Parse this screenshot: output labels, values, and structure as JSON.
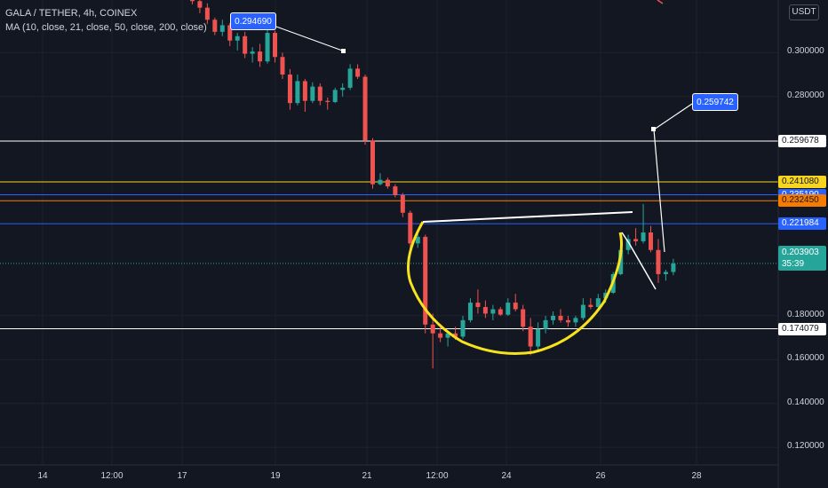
{
  "header": {
    "symbol_line": "GALA / TETHER, 4h, COINEX",
    "ma_line": "MA (10, close, 21, close, 50, close, 200, close)"
  },
  "currency_button": "USDT",
  "colors": {
    "background": "#131722",
    "up": "#26a69a",
    "down": "#ef5350",
    "white_line": "#ffffff",
    "yellow_line": "#f7d51d",
    "blue_line": "#2962ff",
    "orange_line": "#f57c00"
  },
  "chart_data": {
    "type": "candlestick",
    "title": "GALA / TETHER, 4h, COINEX",
    "ylim": [
      0.112,
      0.324
    ],
    "y_ticks": [
      "0.300000",
      "0.280000",
      "0.180000",
      "0.160000",
      "0.140000",
      "0.120000"
    ],
    "y_tick_values": [
      0.3,
      0.28,
      0.18,
      0.16,
      0.14,
      0.12
    ],
    "x_ticks": [
      "14",
      "12:00",
      "17",
      "19",
      "21",
      "12:00",
      "24",
      "26",
      "28"
    ],
    "candles": [
      [
        0.3315,
        0.333,
        0.324,
        0.326
      ],
      [
        0.326,
        0.33,
        0.322,
        0.3235
      ],
      [
        0.3235,
        0.326,
        0.318,
        0.3205
      ],
      [
        0.3205,
        0.3225,
        0.313,
        0.315
      ],
      [
        0.315,
        0.316,
        0.308,
        0.3095
      ],
      [
        0.3095,
        0.315,
        0.3075,
        0.3125
      ],
      [
        0.3125,
        0.3135,
        0.303,
        0.3055
      ],
      [
        0.3055,
        0.309,
        0.301,
        0.3075
      ],
      [
        0.3075,
        0.3095,
        0.2975,
        0.2995
      ],
      [
        0.2995,
        0.3025,
        0.2955,
        0.3005
      ],
      [
        0.3005,
        0.304,
        0.2935,
        0.296
      ],
      [
        0.296,
        0.312,
        0.295,
        0.309
      ],
      [
        0.309,
        0.31,
        0.2955,
        0.298
      ],
      [
        0.298,
        0.3,
        0.288,
        0.29
      ],
      [
        0.29,
        0.2925,
        0.274,
        0.277
      ],
      [
        0.277,
        0.29,
        0.276,
        0.287
      ],
      [
        0.287,
        0.288,
        0.273,
        0.278
      ],
      [
        0.278,
        0.2865,
        0.277,
        0.2845
      ],
      [
        0.2845,
        0.286,
        0.276,
        0.278
      ],
      [
        0.278,
        0.2795,
        0.274,
        0.2775
      ],
      [
        0.2775,
        0.284,
        0.277,
        0.283
      ],
      [
        0.283,
        0.286,
        0.28,
        0.284
      ],
      [
        0.284,
        0.2947,
        0.283,
        0.2927
      ],
      [
        0.2927,
        0.2947,
        0.288,
        0.289
      ],
      [
        0.289,
        0.29,
        0.258,
        0.26
      ],
      [
        0.26,
        0.261,
        0.238,
        0.24
      ],
      [
        0.24,
        0.245,
        0.2395,
        0.242
      ],
      [
        0.242,
        0.243,
        0.238,
        0.239
      ],
      [
        0.239,
        0.24,
        0.234,
        0.235
      ],
      [
        0.235,
        0.236,
        0.225,
        0.227
      ],
      [
        0.227,
        0.228,
        0.21,
        0.213
      ],
      [
        0.213,
        0.218,
        0.211,
        0.216
      ],
      [
        0.216,
        0.217,
        0.172,
        0.176
      ],
      [
        0.176,
        0.181,
        0.156,
        0.172
      ],
      [
        0.172,
        0.176,
        0.168,
        0.17
      ],
      [
        0.17,
        0.173,
        0.166,
        0.172
      ],
      [
        0.172,
        0.175,
        0.169,
        0.1705
      ],
      [
        0.1705,
        0.18,
        0.1695,
        0.178
      ],
      [
        0.178,
        0.188,
        0.177,
        0.186
      ],
      [
        0.186,
        0.192,
        0.181,
        0.184
      ],
      [
        0.184,
        0.187,
        0.179,
        0.181
      ],
      [
        0.181,
        0.185,
        0.178,
        0.183
      ],
      [
        0.183,
        0.184,
        0.18,
        0.1805
      ],
      [
        0.1805,
        0.188,
        0.18,
        0.186
      ],
      [
        0.186,
        0.19,
        0.182,
        0.183
      ],
      [
        0.183,
        0.185,
        0.173,
        0.175
      ],
      [
        0.175,
        0.179,
        0.162,
        0.166
      ],
      [
        0.166,
        0.177,
        0.164,
        0.174
      ],
      [
        0.174,
        0.18,
        0.172,
        0.178
      ],
      [
        0.178,
        0.182,
        0.176,
        0.18
      ],
      [
        0.18,
        0.183,
        0.177,
        0.178
      ],
      [
        0.178,
        0.18,
        0.175,
        0.177
      ],
      [
        0.177,
        0.18,
        0.175,
        0.179
      ],
      [
        0.179,
        0.188,
        0.178,
        0.185
      ],
      [
        0.185,
        0.188,
        0.183,
        0.184
      ],
      [
        0.184,
        0.19,
        0.182,
        0.188
      ],
      [
        0.188,
        0.192,
        0.186,
        0.1905
      ],
      [
        0.1905,
        0.2,
        0.19,
        0.199
      ],
      [
        0.199,
        0.213,
        0.1985,
        0.21
      ],
      [
        0.21,
        0.217,
        0.208,
        0.215
      ],
      [
        0.215,
        0.22,
        0.212,
        0.214
      ],
      [
        0.214,
        0.231,
        0.213,
        0.218
      ],
      [
        0.218,
        0.221,
        0.209,
        0.21
      ],
      [
        0.21,
        0.215,
        0.195,
        0.199
      ],
      [
        0.199,
        0.201,
        0.196,
        0.2
      ],
      [
        0.2,
        0.206,
        0.1985,
        0.2039
      ]
    ],
    "horizontal_levels": [
      {
        "value": 0.259678,
        "label": "0.259678",
        "color": "white"
      },
      {
        "value": 0.24108,
        "label": "0.241080",
        "color": "yellow"
      },
      {
        "value": 0.23519,
        "label": "0.235190",
        "color": "blue"
      },
      {
        "value": 0.23245,
        "label": "0.232450",
        "color": "orange"
      },
      {
        "value": 0.221984,
        "label": "0.221984",
        "color": "blue"
      },
      {
        "value": 0.174079,
        "label": "0.174079",
        "color": "white"
      }
    ],
    "last_price": {
      "value": 0.203903,
      "label": "0.203903",
      "countdown": "35:39"
    },
    "callouts": [
      {
        "label": "0.294690",
        "value": 0.29469
      },
      {
        "label": "0.259742",
        "value": 0.259742
      }
    ]
  }
}
